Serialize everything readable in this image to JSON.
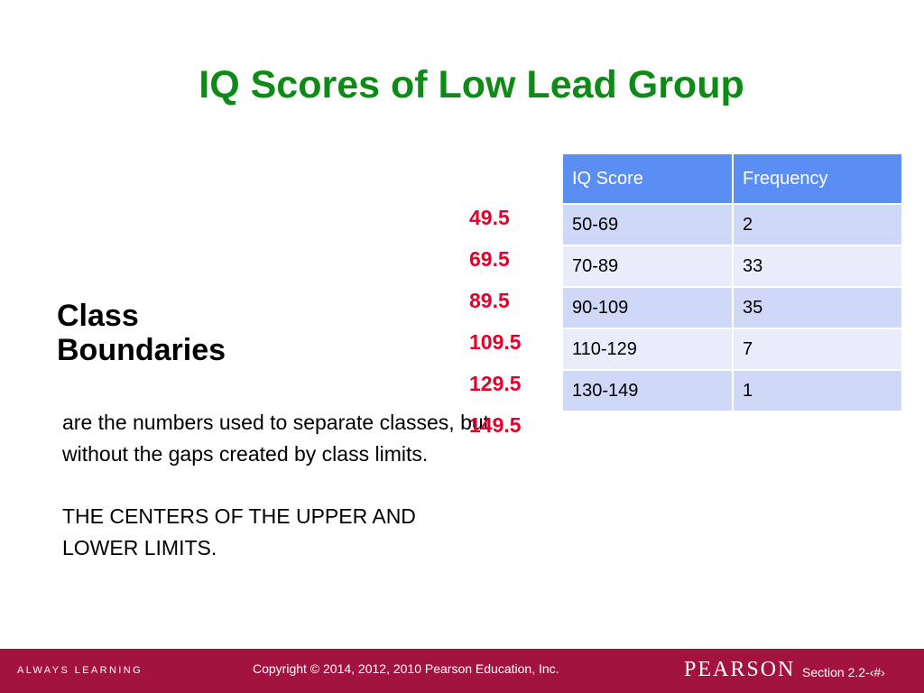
{
  "slide": {
    "title": "IQ Scores of Low Lead Group",
    "heading_line1": "Class",
    "heading_line2": "Boundaries",
    "description": "are the numbers used to separate classes, but without the gaps created by class limits.",
    "note_line1": "THE CENTERS OF THE UPPER AND",
    "note_line2": "LOWER LIMITS."
  },
  "boundaries": [
    "49.5",
    "69.5",
    "89.5",
    "109.5",
    "129.5",
    "149.5"
  ],
  "table": {
    "headers": [
      "IQ Score",
      "Frequency"
    ],
    "rows": [
      [
        "50-69",
        "2"
      ],
      [
        "70-89",
        "33"
      ],
      [
        "90-109",
        "35"
      ],
      [
        "110-129",
        "7"
      ],
      [
        "130-149",
        "1"
      ]
    ]
  },
  "footer": {
    "tagline": "ALWAYS LEARNING",
    "copyright": "Copyright © 2014, 2012, 2010 Pearson Education, Inc.",
    "brand": "PEARSON",
    "section": "Section 2.2-‹#›"
  },
  "colors": {
    "title": "#0e8a16",
    "boundary_values": "#e5002b",
    "table_header": "#5b8ef2",
    "table_row_dark": "#cfd8f6",
    "table_row_light": "#e8ecfb",
    "footer_bar": "#a3133f"
  }
}
